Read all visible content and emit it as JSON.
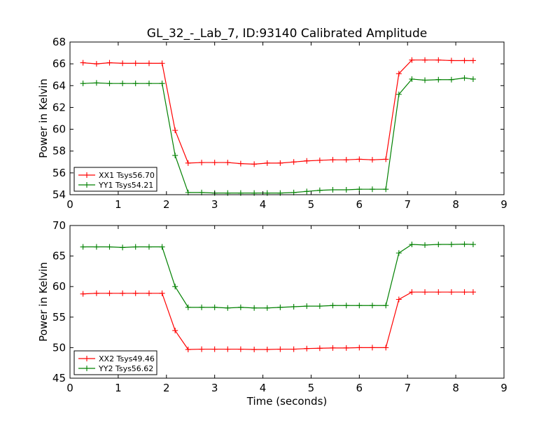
{
  "title": "GL_32_-_Lab_7, ID:93140 Calibrated Amplitude",
  "chart_data": [
    {
      "type": "line",
      "ylabel": "Power in Kelvin",
      "xlabel": "",
      "xlim": [
        0,
        9
      ],
      "ylim": [
        54,
        68
      ],
      "xticks": [
        "0",
        "1",
        "2",
        "3",
        "4",
        "5",
        "6",
        "7",
        "8",
        "9"
      ],
      "yticks": [
        "54",
        "56",
        "58",
        "60",
        "62",
        "64",
        "66",
        "68"
      ],
      "legend": "lower-left",
      "grid": false,
      "x": [
        0.27,
        0.55,
        0.82,
        1.09,
        1.36,
        1.64,
        1.91,
        2.18,
        2.45,
        2.73,
        3.0,
        3.27,
        3.54,
        3.82,
        4.09,
        4.36,
        4.64,
        4.91,
        5.18,
        5.45,
        5.73,
        6.0,
        6.27,
        6.55,
        6.82,
        7.09,
        7.36,
        7.64,
        7.91,
        8.18,
        8.36
      ],
      "series": [
        {
          "name": "XX1 Tsys56.70",
          "color": "#ff0000",
          "values": [
            66.1,
            66.0,
            66.1,
            66.05,
            66.05,
            66.05,
            66.05,
            59.9,
            56.9,
            56.95,
            56.95,
            56.95,
            56.85,
            56.8,
            56.9,
            56.9,
            57.0,
            57.1,
            57.15,
            57.2,
            57.2,
            57.25,
            57.2,
            57.25,
            65.1,
            66.35,
            66.35,
            66.35,
            66.3,
            66.3,
            66.3
          ]
        },
        {
          "name": "YY1 Tsys54.21",
          "color": "#008000",
          "values": [
            64.2,
            64.25,
            64.2,
            64.2,
            64.2,
            64.2,
            64.2,
            57.6,
            54.2,
            54.2,
            54.15,
            54.15,
            54.15,
            54.15,
            54.15,
            54.15,
            54.2,
            54.3,
            54.4,
            54.45,
            54.45,
            54.5,
            54.5,
            54.5,
            63.2,
            64.6,
            64.5,
            64.55,
            64.55,
            64.7,
            64.6
          ]
        }
      ]
    },
    {
      "type": "line",
      "ylabel": "Power in Kelvin",
      "xlabel": "Time (seconds)",
      "xlim": [
        0,
        9
      ],
      "ylim": [
        45,
        70
      ],
      "xticks": [
        "0",
        "1",
        "2",
        "3",
        "4",
        "5",
        "6",
        "7",
        "8",
        "9"
      ],
      "yticks": [
        "45",
        "50",
        "55",
        "60",
        "65",
        "70"
      ],
      "legend": "lower-left",
      "grid": false,
      "x": [
        0.27,
        0.55,
        0.82,
        1.09,
        1.36,
        1.64,
        1.91,
        2.18,
        2.45,
        2.73,
        3.0,
        3.27,
        3.54,
        3.82,
        4.09,
        4.36,
        4.64,
        4.91,
        5.18,
        5.45,
        5.73,
        6.0,
        6.27,
        6.55,
        6.82,
        7.09,
        7.36,
        7.64,
        7.91,
        8.18,
        8.36
      ],
      "series": [
        {
          "name": "XX2 Tsys49.46",
          "color": "#ff0000",
          "values": [
            58.8,
            58.9,
            58.9,
            58.9,
            58.9,
            58.9,
            58.9,
            52.8,
            49.7,
            49.75,
            49.75,
            49.75,
            49.75,
            49.7,
            49.7,
            49.75,
            49.75,
            49.85,
            49.9,
            49.95,
            49.95,
            50.0,
            50.0,
            50.0,
            57.9,
            59.1,
            59.1,
            59.1,
            59.1,
            59.1,
            59.1
          ]
        },
        {
          "name": "YY2 Tsys56.62",
          "color": "#008000",
          "values": [
            66.5,
            66.5,
            66.5,
            66.4,
            66.5,
            66.5,
            66.5,
            60.0,
            56.6,
            56.6,
            56.6,
            56.5,
            56.6,
            56.5,
            56.5,
            56.6,
            56.7,
            56.8,
            56.8,
            56.9,
            56.9,
            56.9,
            56.9,
            56.9,
            65.5,
            66.9,
            66.8,
            66.9,
            66.9,
            66.95,
            66.9
          ]
        }
      ]
    }
  ]
}
